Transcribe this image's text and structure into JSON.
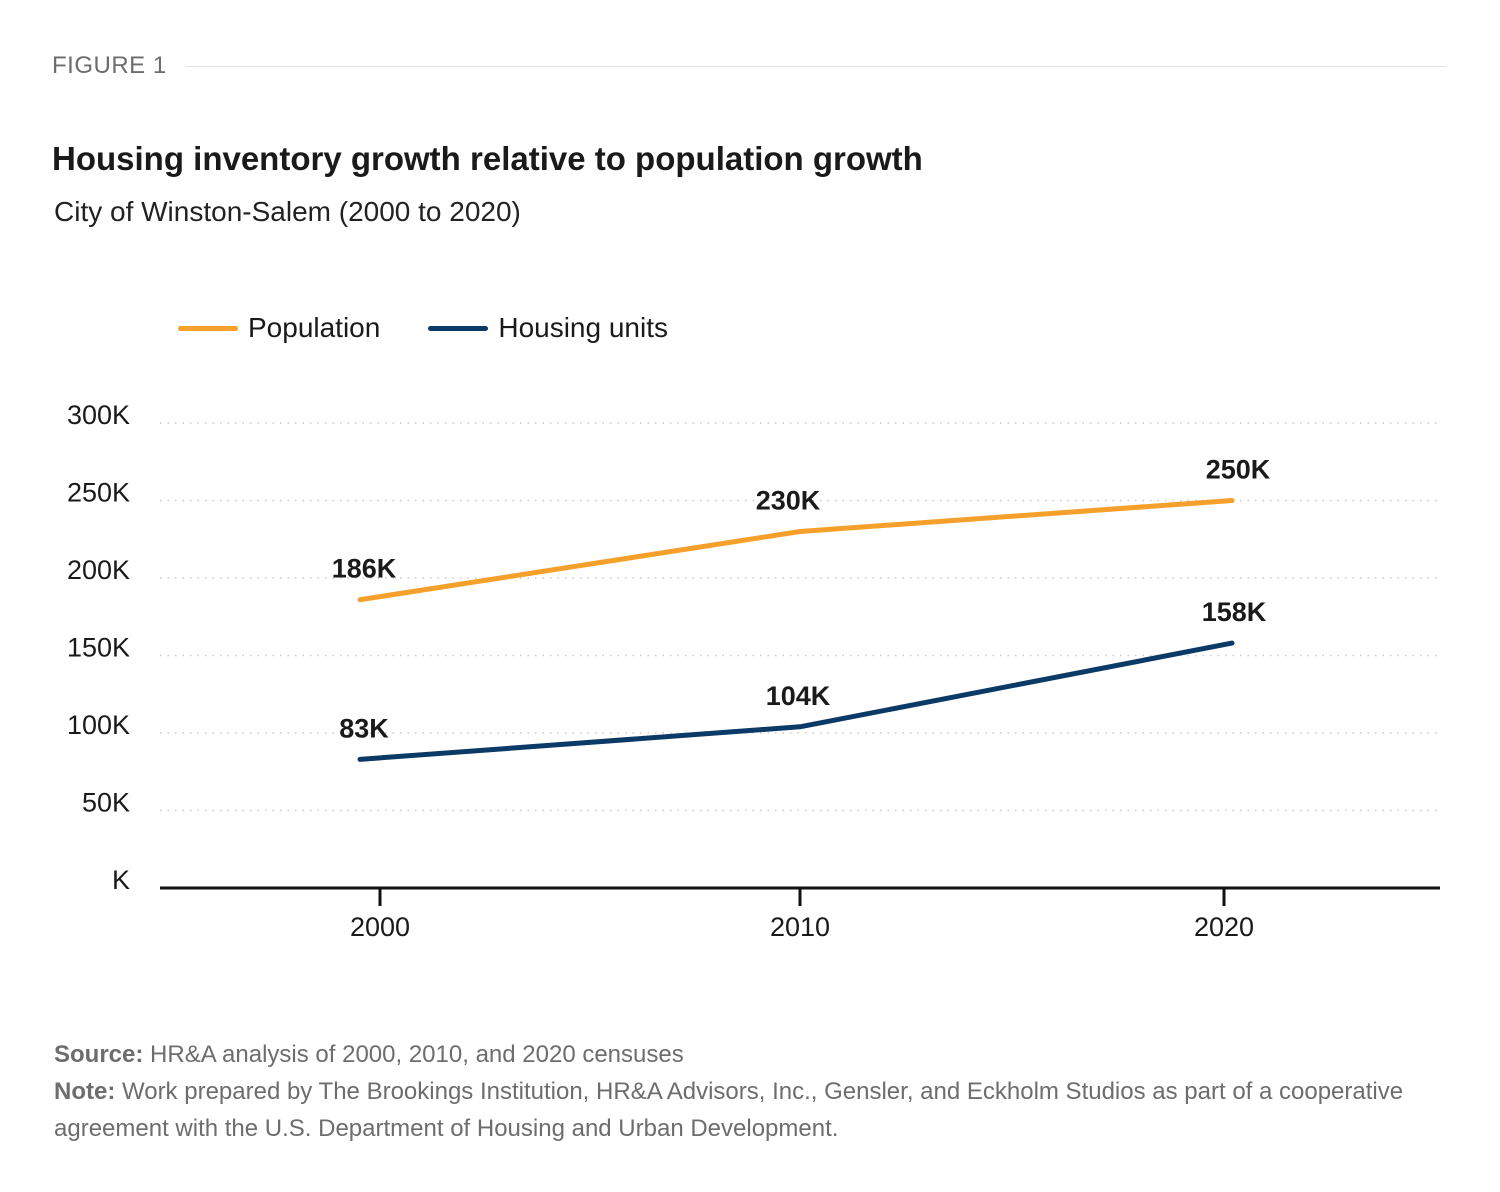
{
  "figure_label": "FIGURE 1",
  "title": "Housing inventory growth relative to population growth",
  "subtitle": "City of Winston-Salem (2000 to 2020)",
  "legend": [
    {
      "label": "Population",
      "color": "#F5A02A"
    },
    {
      "label": "Housing units",
      "color": "#0B3A66"
    }
  ],
  "footer": {
    "source_label": "Source:",
    "source_text": " HR&A analysis of 2000, 2010, and 2020 censuses",
    "note_label": "Note:",
    "note_text": " Work prepared by The Brookings Institution, HR&A Advisors, Inc., Gensler, and Eckholm Studios as part of a cooperative agreement with the U.S. Department of Housing and Urban Development."
  },
  "chart_data": {
    "type": "line",
    "title": "Housing inventory growth relative to population growth",
    "subtitle": "City of Winston-Salem (2000 to 2020)",
    "xlabel": "",
    "ylabel": "",
    "x": [
      "2000",
      "2010",
      "2020"
    ],
    "ylim": [
      0,
      300000
    ],
    "yticks": [
      0,
      50000,
      100000,
      150000,
      200000,
      250000,
      300000
    ],
    "ytick_labels": [
      "K",
      "50K",
      "100K",
      "150K",
      "200K",
      "250K",
      "300K"
    ],
    "grid": true,
    "legend_position": "top-left",
    "series": [
      {
        "name": "Population",
        "color": "#F5A02A",
        "values": [
          186000,
          230000,
          250000
        ],
        "labels": [
          "186K",
          "230K",
          "250K"
        ]
      },
      {
        "name": "Housing units",
        "color": "#0B3A66",
        "values": [
          83000,
          104000,
          158000
        ],
        "labels": [
          "83K",
          "104K",
          "158K"
        ]
      }
    ]
  }
}
